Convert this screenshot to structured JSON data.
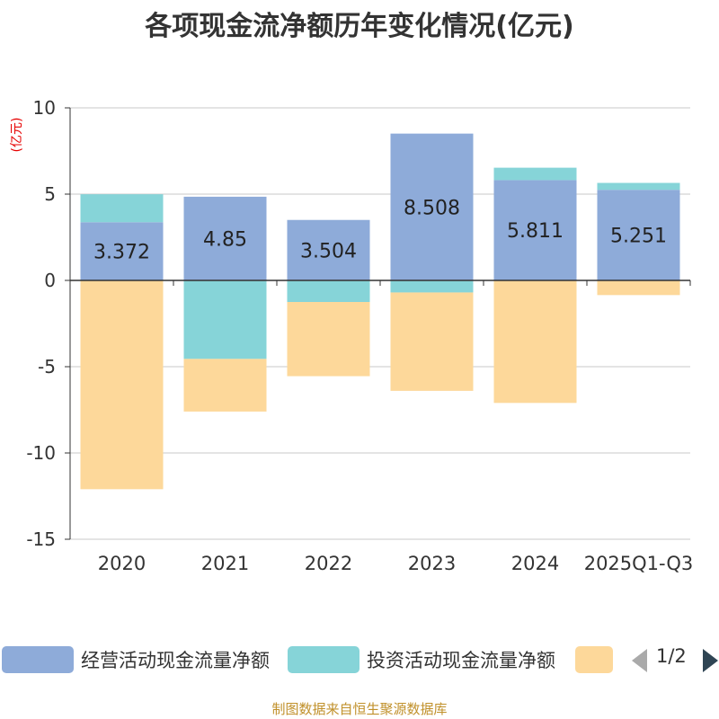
{
  "title": "各项现金流净额历年变化情况(亿元)",
  "chart_data": {
    "type": "bar",
    "stacked": true,
    "title": "各项现金流净额历年变化情况(亿元)",
    "ylabel": "(亿元)",
    "ylim": [
      -15,
      10
    ],
    "yticks": [
      10,
      5,
      0,
      -5,
      -10,
      -15
    ],
    "grid": true,
    "categories": [
      "2020",
      "2021",
      "2022",
      "2023",
      "2024",
      "2025Q1-Q3"
    ],
    "series": [
      {
        "name": "经营活动现金流量净额",
        "color": "#8eabd9",
        "values": [
          3.372,
          4.85,
          3.504,
          8.508,
          5.811,
          5.251
        ],
        "labels": [
          "3.372",
          "4.85",
          "3.504",
          "8.508",
          "5.811",
          "5.251"
        ]
      },
      {
        "name": "投资活动现金流量净额",
        "color": "#86d4d8",
        "values": [
          1.62,
          -4.55,
          -1.25,
          -0.7,
          0.72,
          0.4
        ]
      },
      {
        "name": "",
        "color": "#fdd89a",
        "values": [
          -12.1,
          -3.05,
          -4.3,
          -5.7,
          -7.1,
          -0.85
        ]
      }
    ]
  },
  "legend": {
    "items": [
      {
        "label": "经营活动现金流量净额",
        "color": "#8eabd9"
      },
      {
        "label": "投资活动现金流量净额",
        "color": "#86d4d8"
      },
      {
        "label": "",
        "color": "#fdd89a"
      }
    ],
    "page_indicator": "1/2"
  },
  "source": "制图数据来自恒生聚源数据库"
}
